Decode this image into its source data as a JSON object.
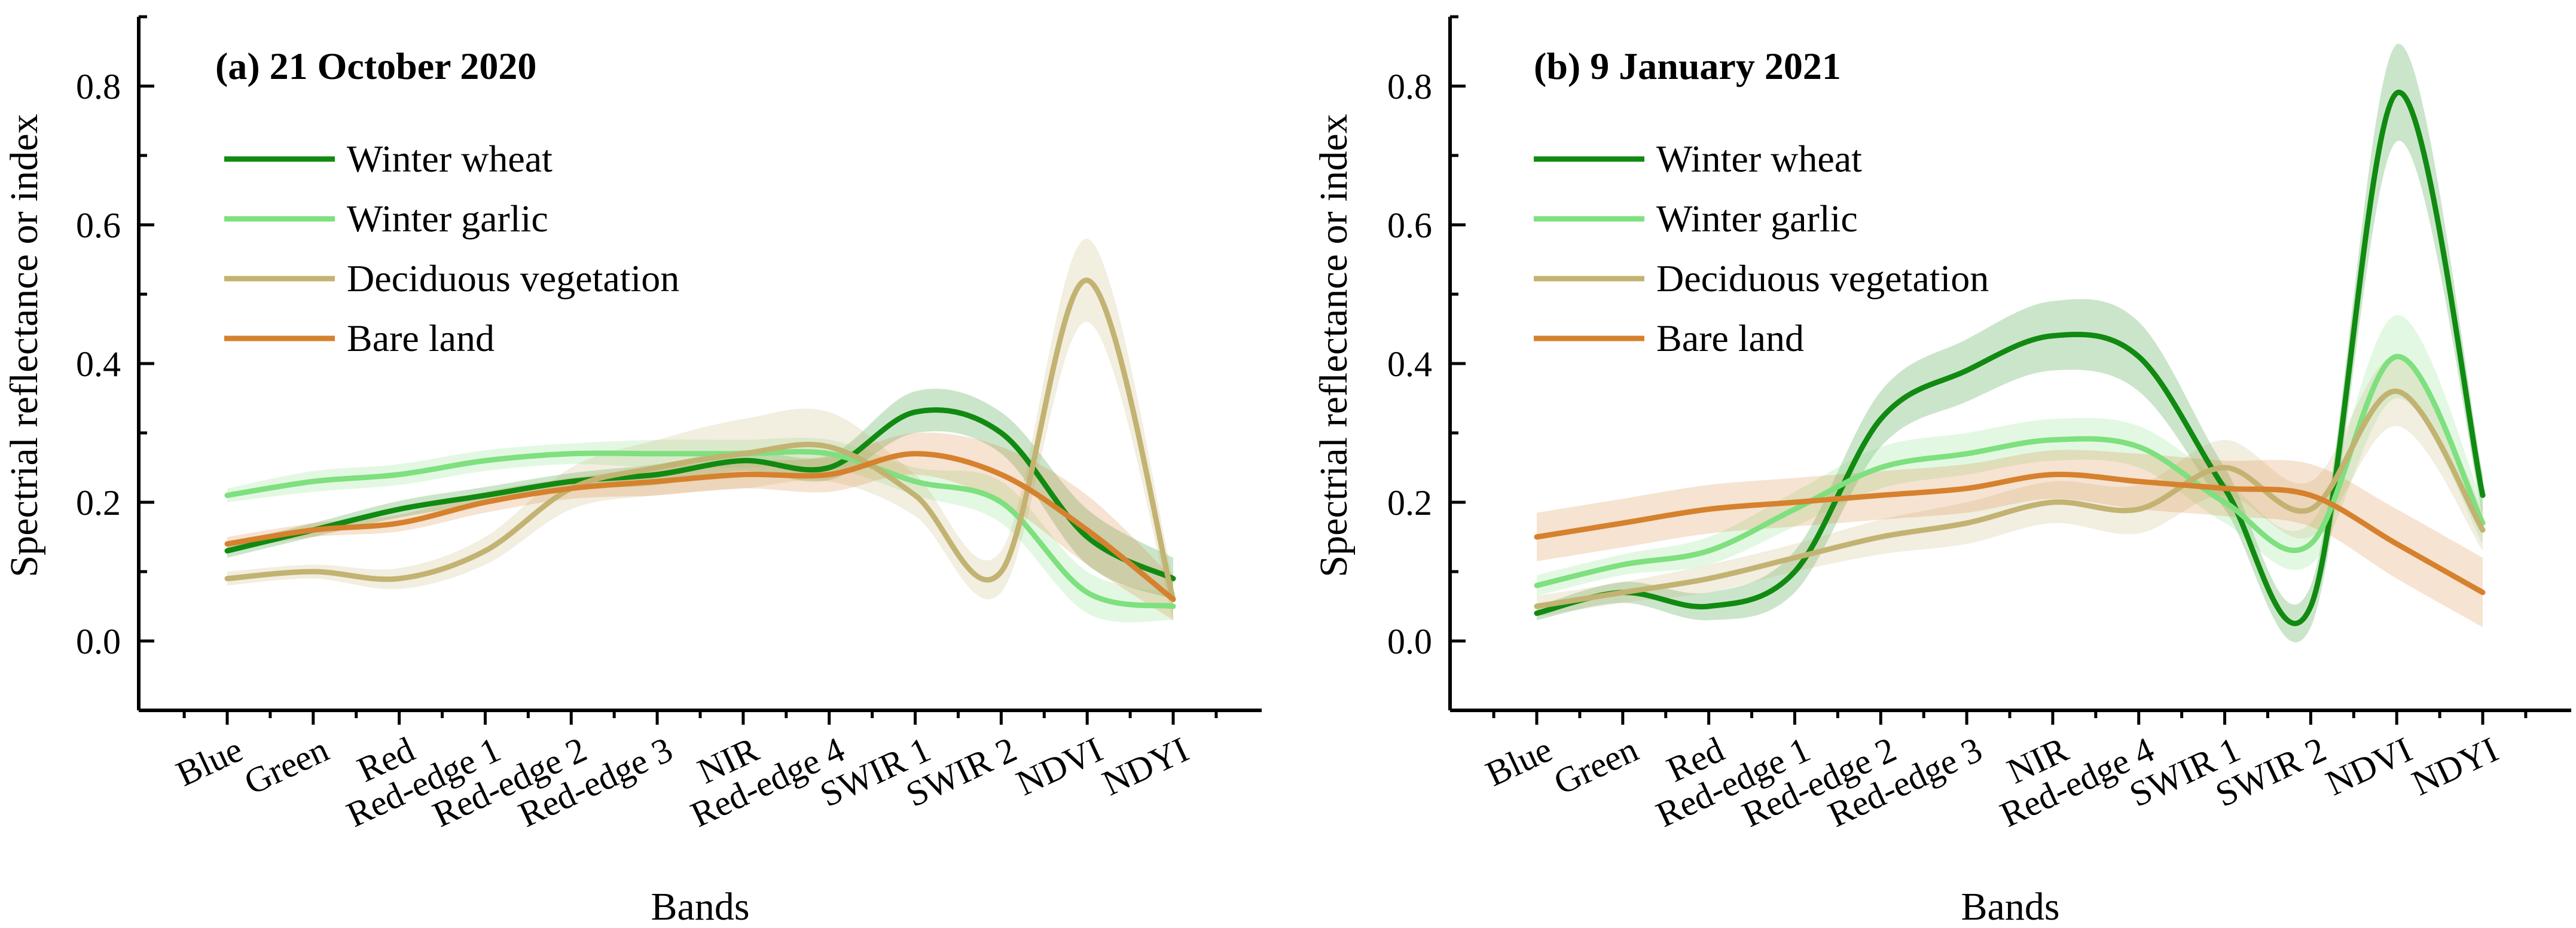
{
  "chart_data": [
    {
      "type": "line",
      "title": "(a) 21 October 2020",
      "xlabel": "Bands",
      "ylabel": "Spectrial reflectance or index",
      "categories": [
        "Blue",
        "Green",
        "Red",
        "Red-edge 1",
        "Red-edge 2",
        "Red-edge 3",
        "NIR",
        "Red-edge 4",
        "SWIR 1",
        "SWIR 2",
        "NDVI",
        "NDYI"
      ],
      "ylim": [
        -0.1,
        0.9
      ],
      "yticks": [
        0.0,
        0.2,
        0.4,
        0.6,
        0.8
      ],
      "ytick_labels": [
        "0.0",
        "0.2",
        "0.4",
        "0.6",
        "0.8"
      ],
      "legend_position": "top-left",
      "series": [
        {
          "name": "Winter wheat",
          "color": "#118a11",
          "values": [
            0.13,
            0.16,
            0.19,
            0.21,
            0.23,
            0.24,
            0.26,
            0.25,
            0.33,
            0.3,
            0.15,
            0.09
          ],
          "spread": [
            0.01,
            0.01,
            0.012,
            0.012,
            0.012,
            0.015,
            0.015,
            0.018,
            0.03,
            0.03,
            0.04,
            0.03
          ]
        },
        {
          "name": "Winter garlic",
          "color": "#7ee07e",
          "values": [
            0.21,
            0.23,
            0.24,
            0.26,
            0.27,
            0.27,
            0.27,
            0.27,
            0.23,
            0.2,
            0.07,
            0.05
          ],
          "spread": [
            0.01,
            0.015,
            0.015,
            0.015,
            0.015,
            0.02,
            0.02,
            0.02,
            0.02,
            0.03,
            0.03,
            0.02
          ]
        },
        {
          "name": "Deciduous vegetation",
          "color": "#c2b372",
          "values": [
            0.09,
            0.1,
            0.09,
            0.13,
            0.22,
            0.25,
            0.27,
            0.28,
            0.21,
            0.1,
            0.52,
            0.06
          ],
          "spread": [
            0.01,
            0.01,
            0.015,
            0.02,
            0.03,
            0.04,
            0.05,
            0.05,
            0.03,
            0.03,
            0.06,
            0.03
          ]
        },
        {
          "name": "Bare land",
          "color": "#d6812e",
          "values": [
            0.14,
            0.16,
            0.17,
            0.2,
            0.22,
            0.23,
            0.24,
            0.24,
            0.27,
            0.24,
            0.16,
            0.06
          ],
          "spread": [
            0.01,
            0.01,
            0.012,
            0.015,
            0.015,
            0.02,
            0.02,
            0.025,
            0.03,
            0.04,
            0.05,
            0.03
          ]
        }
      ]
    },
    {
      "type": "line",
      "title": "(b) 9 January 2021",
      "xlabel": "Bands",
      "ylabel": "Spectrial reflectance or index",
      "categories": [
        "Blue",
        "Green",
        "Red",
        "Red-edge 1",
        "Red-edge 2",
        "Red-edge 3",
        "NIR",
        "Red-edge 4",
        "SWIR 1",
        "SWIR 2",
        "NDVI",
        "NDYI"
      ],
      "ylim": [
        -0.1,
        0.9
      ],
      "yticks": [
        0.0,
        0.2,
        0.4,
        0.6,
        0.8
      ],
      "ytick_labels": [
        "0.0",
        "0.2",
        "0.4",
        "0.6",
        "0.8"
      ],
      "legend_position": "top-left",
      "series": [
        {
          "name": "Winter wheat",
          "color": "#118a11",
          "values": [
            0.04,
            0.07,
            0.05,
            0.1,
            0.32,
            0.39,
            0.44,
            0.41,
            0.22,
            0.05,
            0.79,
            0.21
          ],
          "spread": [
            0.01,
            0.015,
            0.02,
            0.03,
            0.04,
            0.045,
            0.05,
            0.05,
            0.03,
            0.03,
            0.07,
            0.03
          ]
        },
        {
          "name": "Winter garlic",
          "color": "#7ee07e",
          "values": [
            0.08,
            0.11,
            0.13,
            0.19,
            0.25,
            0.27,
            0.29,
            0.28,
            0.2,
            0.14,
            0.41,
            0.17
          ],
          "spread": [
            0.015,
            0.015,
            0.02,
            0.025,
            0.03,
            0.03,
            0.03,
            0.03,
            0.03,
            0.03,
            0.06,
            0.03
          ]
        },
        {
          "name": "Deciduous vegetation",
          "color": "#c2b372",
          "values": [
            0.05,
            0.07,
            0.09,
            0.12,
            0.15,
            0.17,
            0.2,
            0.19,
            0.25,
            0.19,
            0.36,
            0.16
          ],
          "spread": [
            0.015,
            0.015,
            0.02,
            0.02,
            0.025,
            0.03,
            0.03,
            0.035,
            0.04,
            0.04,
            0.05,
            0.03
          ]
        },
        {
          "name": "Bare land",
          "color": "#d6812e",
          "values": [
            0.15,
            0.17,
            0.19,
            0.2,
            0.21,
            0.22,
            0.24,
            0.23,
            0.22,
            0.21,
            0.14,
            0.07
          ],
          "spread": [
            0.035,
            0.035,
            0.035,
            0.035,
            0.035,
            0.035,
            0.035,
            0.04,
            0.04,
            0.045,
            0.05,
            0.05
          ]
        }
      ]
    }
  ]
}
